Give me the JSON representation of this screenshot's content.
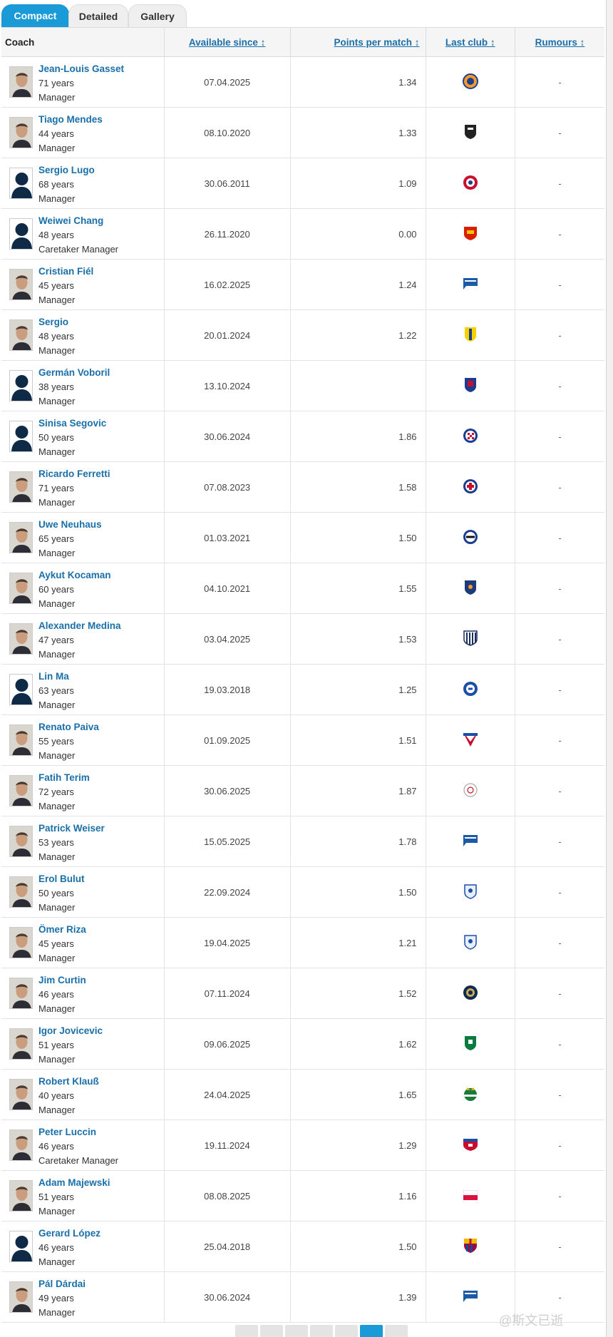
{
  "tabs": [
    {
      "label": "Compact"
    },
    {
      "label": "Detailed"
    },
    {
      "label": "Gallery"
    }
  ],
  "columns": {
    "coach": "Coach",
    "available_since": "Available since ↕",
    "points_per_match": "Points per match ↕",
    "last_club": "Last club ↕",
    "rumours": "Rumours ↕"
  },
  "colors": {
    "accent": "#1a9ad6",
    "link": "#1a6fa8"
  },
  "rows": [
    {
      "name": "Jean-Louis Gasset",
      "age": "71 years",
      "role": "Manager",
      "date": "07.04.2025",
      "ppm": "1.34",
      "rumours": "-",
      "avatar": "photo",
      "club_icon": "montpellier-crest"
    },
    {
      "name": "Tiago Mendes",
      "age": "44 years",
      "role": "Manager",
      "date": "08.10.2020",
      "ppm": "1.33",
      "rumours": "-",
      "avatar": "photo",
      "club_icon": "vitoria-guimaraes-crest"
    },
    {
      "name": "Sergio Lugo",
      "age": "68 years",
      "role": "Manager",
      "date": "30.06.2011",
      "ppm": "1.09",
      "rumours": "-",
      "avatar": "silhouette",
      "club_icon": "red-circle-crest"
    },
    {
      "name": "Weiwei Chang",
      "age": "48 years",
      "role": "Caretaker Manager",
      "date": "26.11.2020",
      "ppm": "0.00",
      "rumours": "-",
      "avatar": "silhouette",
      "club_icon": "guangzhou-crest"
    },
    {
      "name": "Cristian Fiél",
      "age": "45 years",
      "role": "Manager",
      "date": "16.02.2025",
      "ppm": "1.24",
      "rumours": "-",
      "avatar": "photo",
      "club_icon": "hertha-flag-crest"
    },
    {
      "name": "Sergio",
      "age": "48 years",
      "role": "Manager",
      "date": "20.01.2024",
      "ppm": "1.22",
      "rumours": "-",
      "avatar": "photo",
      "club_icon": "cadiz-crest"
    },
    {
      "name": "Germán Voboril",
      "age": "38 years",
      "role": "Manager",
      "date": "13.10.2024",
      "ppm": "",
      "rumours": "-",
      "avatar": "silhouette",
      "club_icon": "san-lorenzo-crest"
    },
    {
      "name": "Sinisa Segovic",
      "age": "50 years",
      "role": "Manager",
      "date": "30.06.2024",
      "ppm": "1.86",
      "rumours": "-",
      "avatar": "silhouette",
      "club_icon": "hajduk-crest"
    },
    {
      "name": "Ricardo Ferretti",
      "age": "71 years",
      "role": "Manager",
      "date": "07.08.2023",
      "ppm": "1.58",
      "rumours": "-",
      "avatar": "photo",
      "club_icon": "cruz-azul-crest"
    },
    {
      "name": "Uwe Neuhaus",
      "age": "65 years",
      "role": "Manager",
      "date": "01.03.2021",
      "ppm": "1.50",
      "rumours": "-",
      "avatar": "photo",
      "club_icon": "bielefeld-crest"
    },
    {
      "name": "Aykut Kocaman",
      "age": "60 years",
      "role": "Manager",
      "date": "04.10.2021",
      "ppm": "1.55",
      "rumours": "-",
      "avatar": "photo",
      "club_icon": "basaksehir-crest"
    },
    {
      "name": "Alexander Medina",
      "age": "47 years",
      "role": "Manager",
      "date": "03.04.2025",
      "ppm": "1.53",
      "rumours": "-",
      "avatar": "photo",
      "club_icon": "talleres-crest"
    },
    {
      "name": "Lin Ma",
      "age": "63 years",
      "role": "Manager",
      "date": "19.03.2018",
      "ppm": "1.25",
      "rumours": "-",
      "avatar": "silhouette",
      "club_icon": "blue-round-crest"
    },
    {
      "name": "Renato Paiva",
      "age": "55 years",
      "role": "Manager",
      "date": "01.09.2025",
      "ppm": "1.51",
      "rumours": "-",
      "avatar": "photo",
      "club_icon": "fortaleza-crest"
    },
    {
      "name": "Fatih Terim",
      "age": "72 years",
      "role": "Manager",
      "date": "30.06.2025",
      "ppm": "1.87",
      "rumours": "-",
      "avatar": "photo",
      "club_icon": "al-shabab-crest"
    },
    {
      "name": "Patrick Weiser",
      "age": "53 years",
      "role": "Manager",
      "date": "15.05.2025",
      "ppm": "1.78",
      "rumours": "-",
      "avatar": "photo",
      "club_icon": "hertha-flag-crest"
    },
    {
      "name": "Erol Bulut",
      "age": "50 years",
      "role": "Manager",
      "date": "22.09.2024",
      "ppm": "1.50",
      "rumours": "-",
      "avatar": "photo",
      "club_icon": "cardiff-crest"
    },
    {
      "name": "Ömer Riza",
      "age": "45 years",
      "role": "Manager",
      "date": "19.04.2025",
      "ppm": "1.21",
      "rumours": "-",
      "avatar": "photo",
      "club_icon": "cardiff-crest"
    },
    {
      "name": "Jim Curtin",
      "age": "46 years",
      "role": "Manager",
      "date": "07.11.2024",
      "ppm": "1.52",
      "rumours": "-",
      "avatar": "photo",
      "club_icon": "philadelphia-union-crest"
    },
    {
      "name": "Igor Jovicevic",
      "age": "51 years",
      "role": "Manager",
      "date": "09.06.2025",
      "ppm": "1.62",
      "rumours": "-",
      "avatar": "photo",
      "club_icon": "ludogorets-crest"
    },
    {
      "name": "Robert Klauß",
      "age": "40 years",
      "role": "Manager",
      "date": "24.04.2025",
      "ppm": "1.65",
      "rumours": "-",
      "avatar": "photo",
      "club_icon": "rapid-wien-crest"
    },
    {
      "name": "Peter Luccin",
      "age": "46 years",
      "role": "Caretaker Manager",
      "date": "19.11.2024",
      "ppm": "1.29",
      "rumours": "-",
      "avatar": "photo",
      "club_icon": "fc-dallas-crest"
    },
    {
      "name": "Adam Majewski",
      "age": "51 years",
      "role": "Manager",
      "date": "08.08.2025",
      "ppm": "1.16",
      "rumours": "-",
      "avatar": "photo",
      "club_icon": "poland-flag"
    },
    {
      "name": "Gerard López",
      "age": "46 years",
      "role": "Manager",
      "date": "25.04.2018",
      "ppm": "1.50",
      "rumours": "-",
      "avatar": "silhouette",
      "club_icon": "barcelona-crest"
    },
    {
      "name": "Pál Dárdai",
      "age": "49 years",
      "role": "Manager",
      "date": "30.06.2024",
      "ppm": "1.39",
      "rumours": "-",
      "avatar": "photo",
      "club_icon": "hertha-flag-crest"
    }
  ],
  "watermark": "@斯文已逝"
}
